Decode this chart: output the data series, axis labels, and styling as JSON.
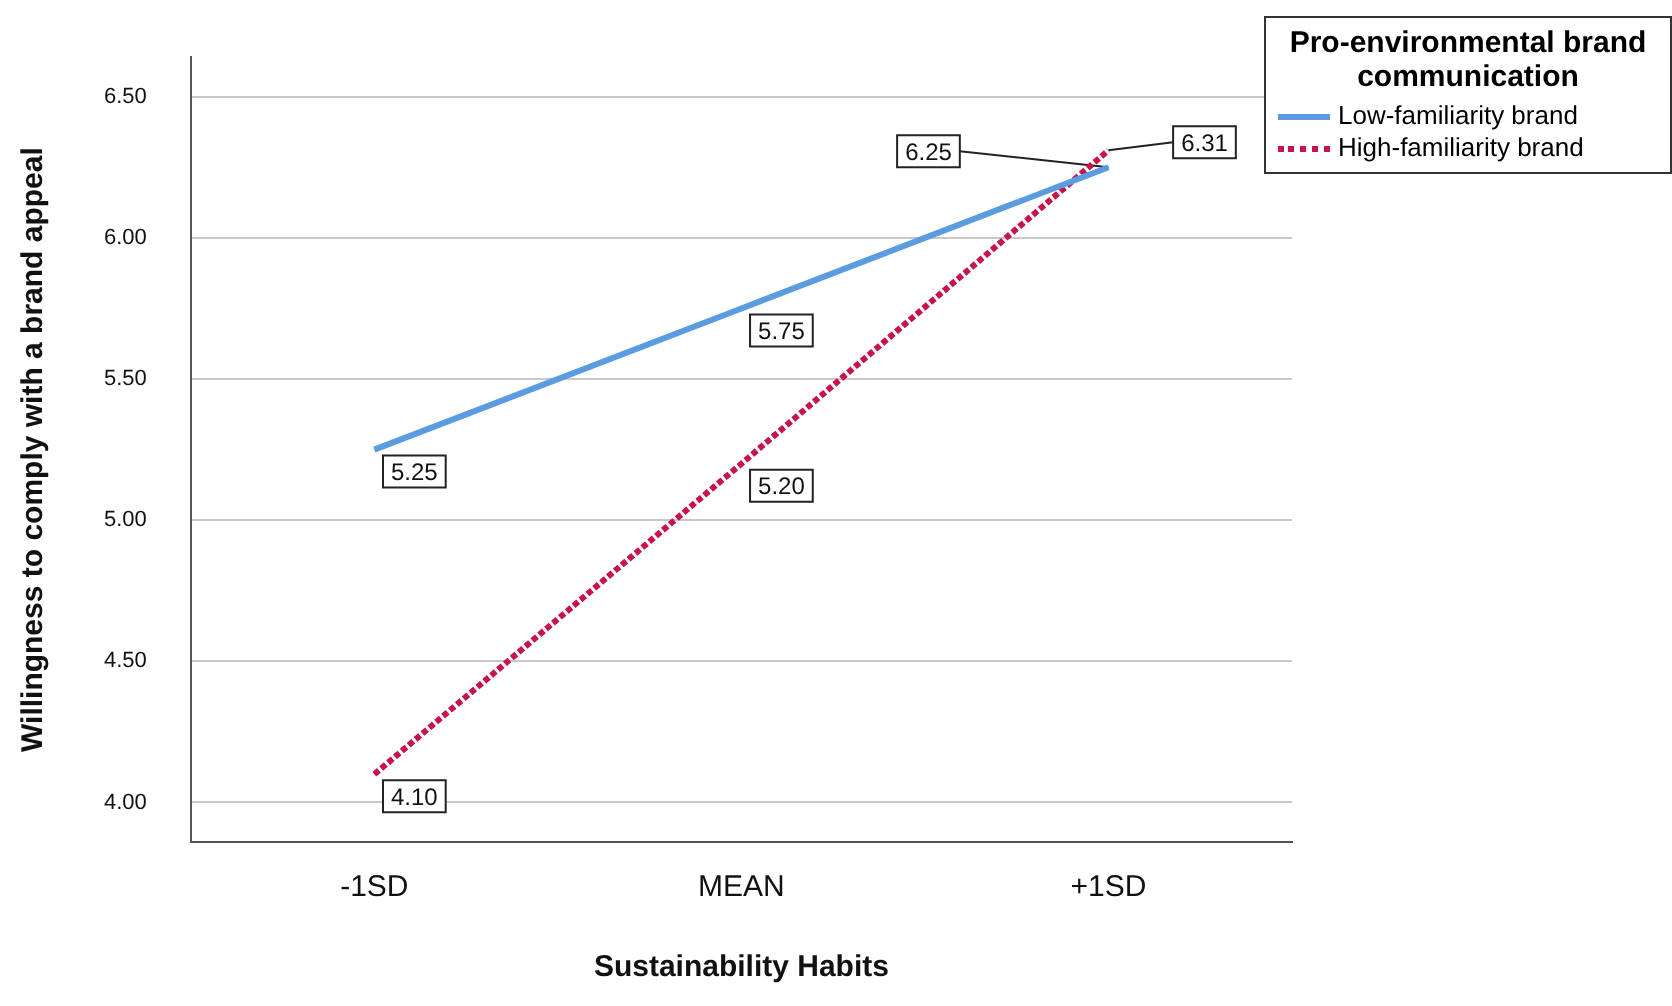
{
  "chart_data": {
    "type": "line",
    "xlabel": "Sustainability Habits",
    "ylabel": "Willingness to comply with a brand appeal",
    "legend_title": "Pro-environmental brand communication",
    "categories": [
      "-1SD",
      "MEAN",
      "+1SD"
    ],
    "series": [
      {
        "name": "Low-familiarity brand",
        "color": "#5b9be0",
        "line_style": "solid",
        "values": [
          5.25,
          5.75,
          6.25
        ],
        "value_labels": [
          "5.25",
          "5.75",
          null
        ]
      },
      {
        "name": "High-familiarity brand",
        "color": "#c8124a",
        "line_style": "dotted",
        "values": [
          4.1,
          5.2,
          6.31
        ],
        "value_labels": [
          "4.10",
          "5.20",
          null
        ]
      }
    ],
    "annotations": [
      {
        "text": "6.25",
        "x": "+1SD",
        "y": 6.25
      },
      {
        "text": "6.31",
        "x": "+1SD",
        "y": 6.31
      }
    ],
    "ylim": [
      3.86,
      6.64
    ],
    "yticks": [
      {
        "value": 4,
        "label": "4.00"
      },
      {
        "value": 4.5,
        "label": "4.50"
      },
      {
        "value": 5,
        "label": "5.00"
      },
      {
        "value": 5.5,
        "label": "5.50"
      },
      {
        "value": 6,
        "label": "6.00"
      },
      {
        "value": 6.5,
        "label": "6.50"
      }
    ],
    "grid": "y",
    "legend": "top right"
  }
}
